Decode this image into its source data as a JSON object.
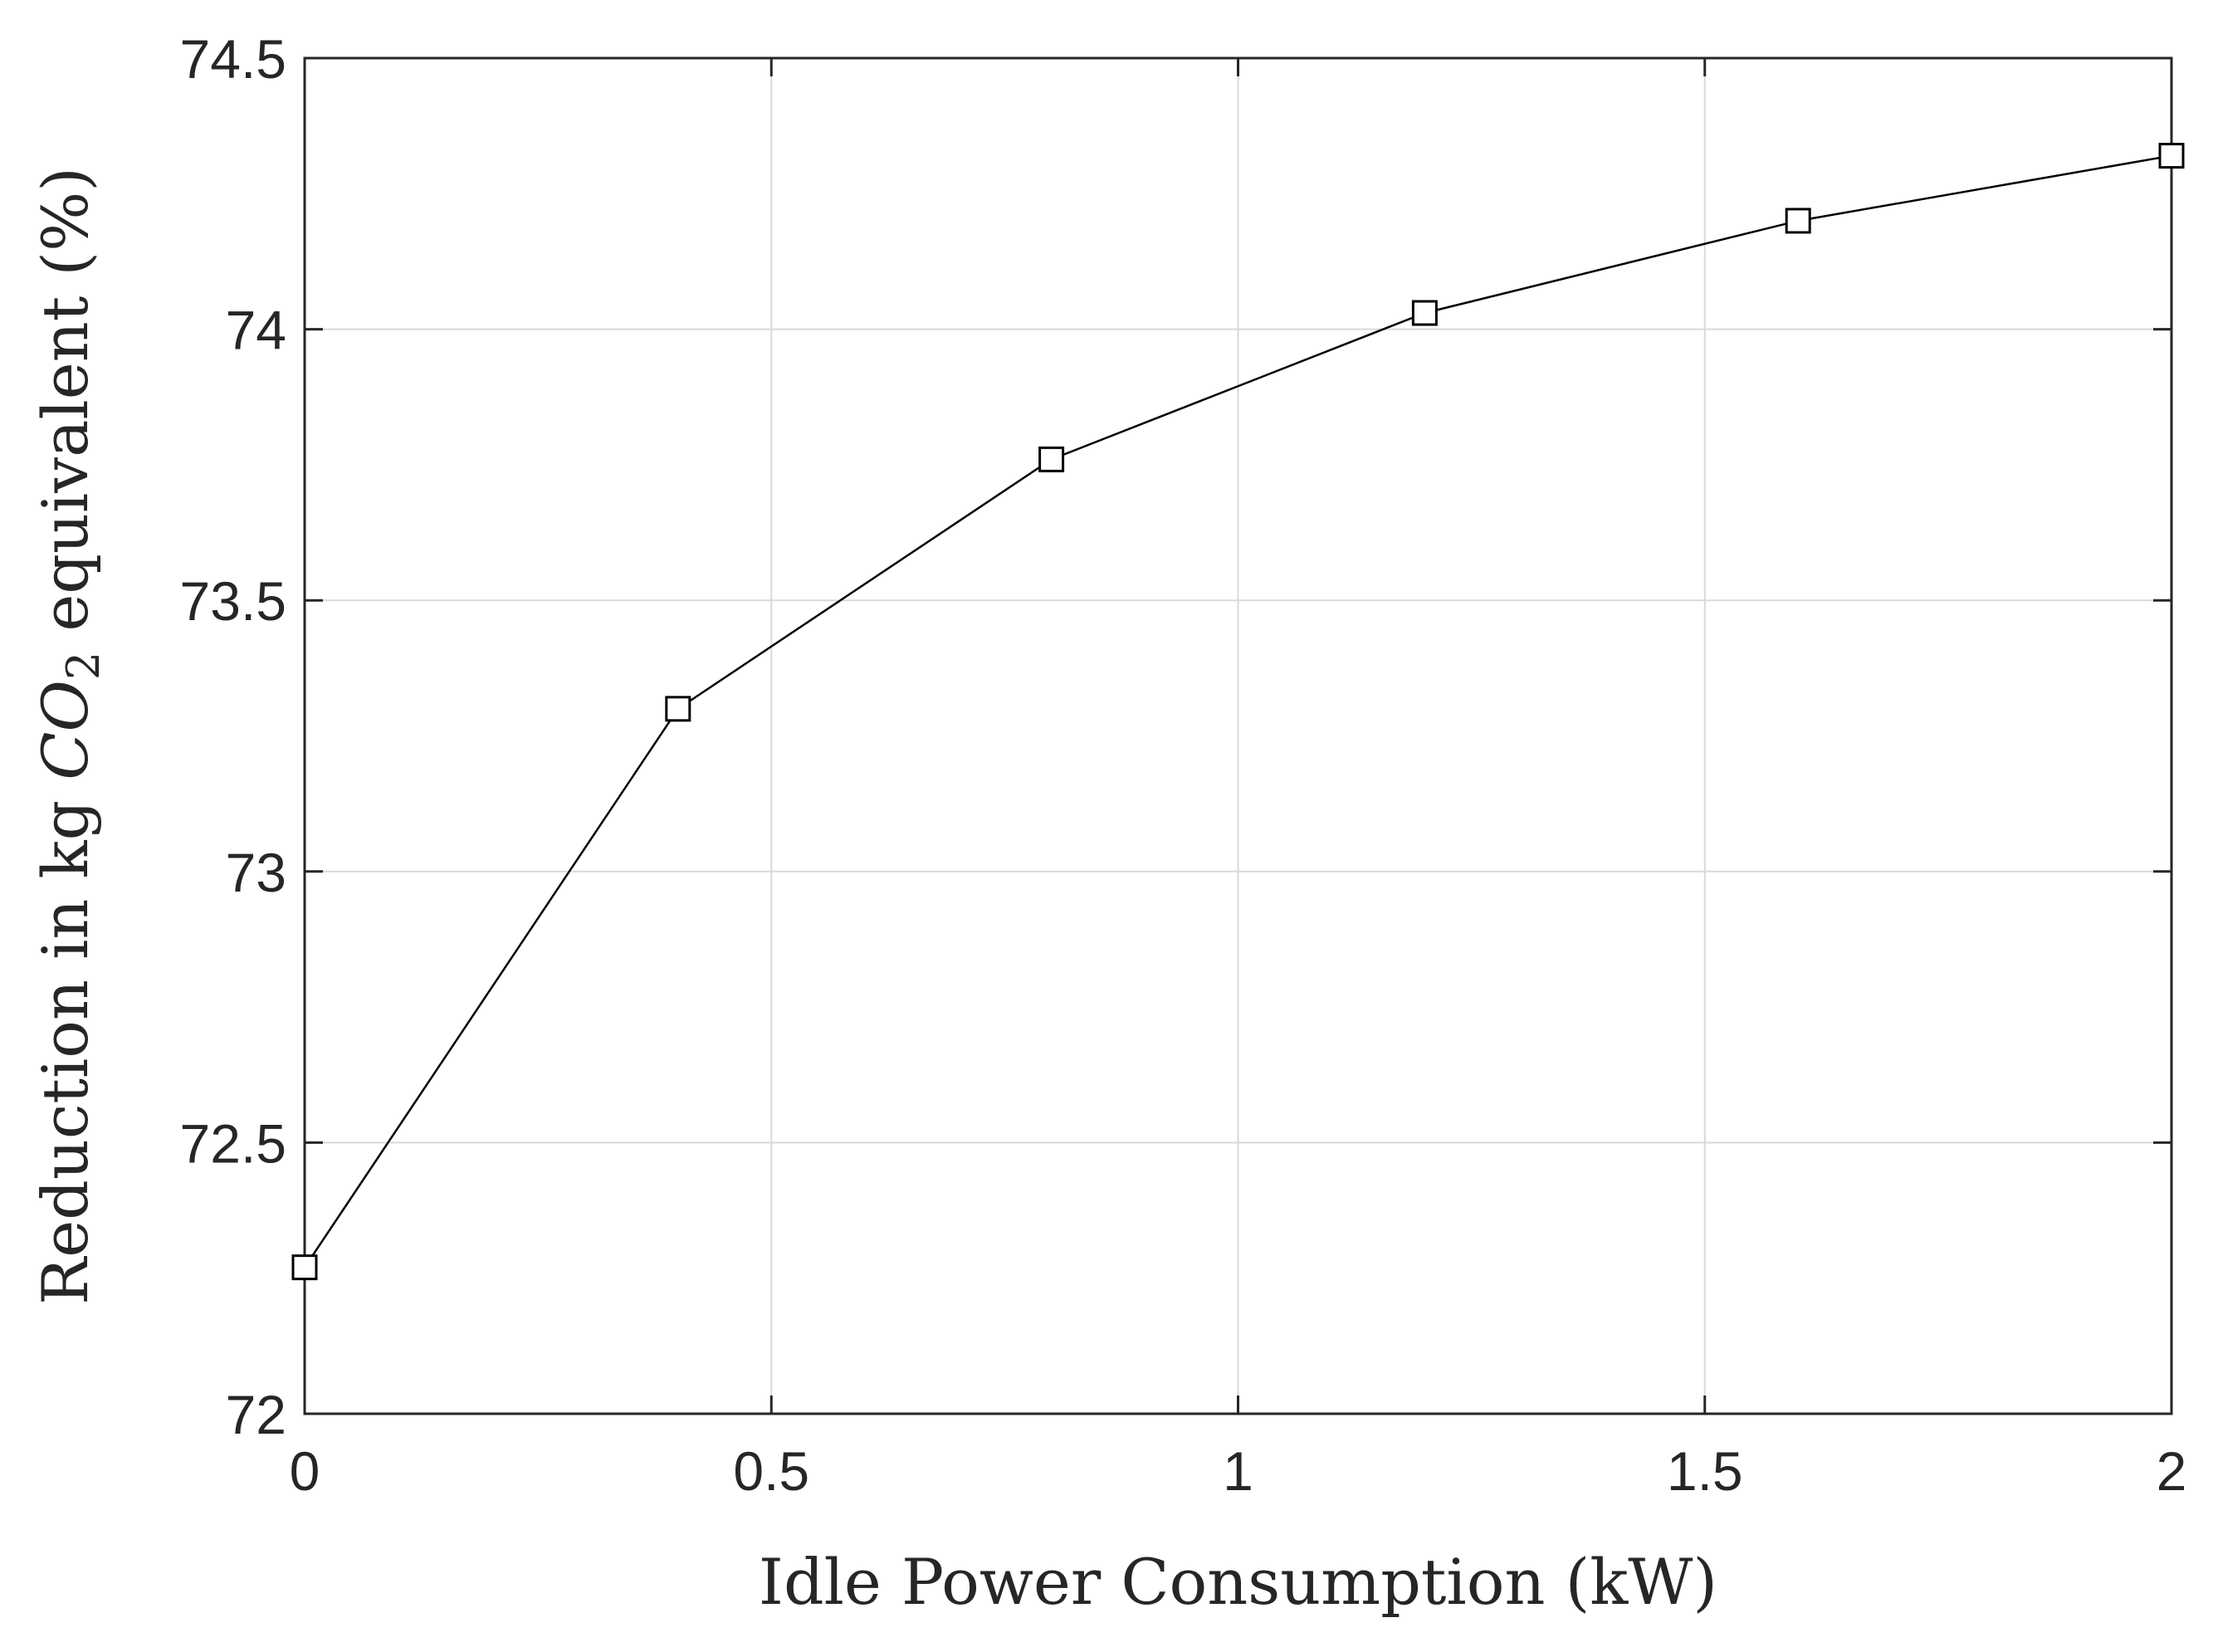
{
  "chart_data": {
    "type": "line",
    "title": "",
    "xlabel": "Idle Power Consumption (kW)",
    "ylabel": {
      "prefix": "Reduction in kg ",
      "chem": "CO",
      "subscript": "2",
      "suffix": " equivalent (%)"
    },
    "xlim": [
      0,
      2
    ],
    "ylim": [
      72,
      74.5
    ],
    "xticks": [
      0,
      0.5,
      1,
      1.5,
      2
    ],
    "xtick_labels": [
      "0",
      "0.5",
      "1",
      "1.5",
      "2"
    ],
    "yticks": [
      72,
      72.5,
      73,
      73.5,
      74,
      74.5
    ],
    "ytick_labels": [
      "72",
      "72.5",
      "73",
      "73.5",
      "74",
      "74.5"
    ],
    "grid": true,
    "series": [
      {
        "name": "Reduction",
        "marker": "square",
        "color": "#000000",
        "x": [
          0,
          0.4,
          0.8,
          1.2,
          1.6,
          2.0
        ],
        "y": [
          72.27,
          73.3,
          73.76,
          74.03,
          74.2,
          74.32
        ]
      }
    ]
  }
}
